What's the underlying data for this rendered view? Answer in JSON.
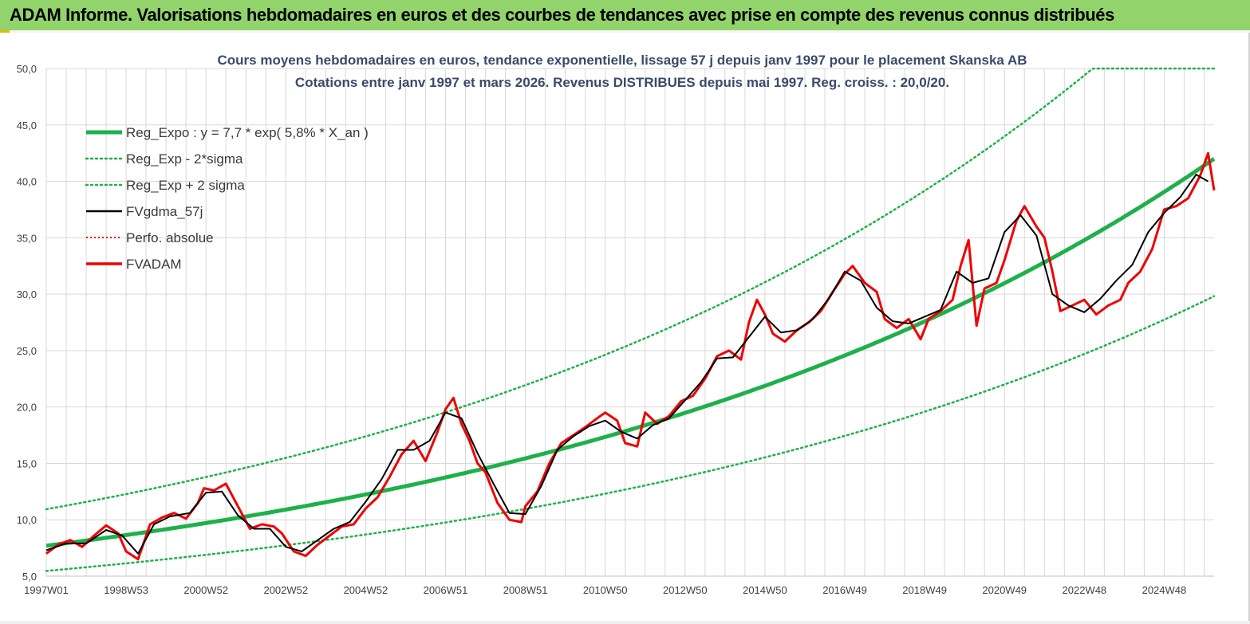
{
  "banner": {
    "title": "ADAM Informe. Valorisations hebdomadaires en euros et des courbes de tendances avec prise en compte des revenus connus distribués"
  },
  "colors": {
    "banner": "#92d36b",
    "regression": "#1fb04b",
    "band": "#1fb04b",
    "smoothed": "#000000",
    "perfo": "#e00000",
    "fvadam": "#ee0000"
  },
  "chart_data": {
    "type": "line",
    "title_line1": "Cours moyens hebdomadaires en euros, tendance exponentielle, lissage 57 j depuis janv 1997 pour le placement Skanska AB",
    "title_line2": "Cotations entre janv 1997 et mars 2026. Revenus DISTRIBUES depuis mai 1997. Reg. croiss. : 20,0/20.",
    "x_range": [
      1997.0,
      2026.25
    ],
    "ylim": [
      5,
      50
    ],
    "y_ticks": [
      "5,0",
      "10,0",
      "15,0",
      "20,0",
      "25,0",
      "30,0",
      "35,0",
      "40,0",
      "45,0",
      "50,0"
    ],
    "x_tick_labels": [
      "1997W01",
      "1998W53",
      "2000W52",
      "2002W52",
      "2004W52",
      "2006W51",
      "2008W51",
      "2010W50",
      "2012W50",
      "2014W50",
      "2016W49",
      "2018W49",
      "2020W49",
      "2022W48",
      "2024W48"
    ],
    "x_tick_years": [
      1997.0,
      1999.0,
      2001.0,
      2003.0,
      2005.0,
      2007.0,
      2009.0,
      2011.0,
      2013.0,
      2015.0,
      2017.0,
      2019.0,
      2021.0,
      2023.0,
      2025.0
    ],
    "grid": true,
    "legend": [
      {
        "label": "Reg_Expo : y = 7,7 * exp( 5,8% *  X_an )",
        "style": "thick-green"
      },
      {
        "label": "Reg_Exp - 2*sigma",
        "style": "dotted-green"
      },
      {
        "label": "Reg_Exp + 2 sigma",
        "style": "dotted-green"
      },
      {
        "label": "FVgdma_57j",
        "style": "black"
      },
      {
        "label": "Perfo. absolue",
        "style": "dotted-red"
      },
      {
        "label": "FVADAM",
        "style": "thick-red"
      }
    ],
    "regression": {
      "a": 7.7,
      "rate": 0.058,
      "lower_factor": 0.71,
      "upper_factor": 1.42
    },
    "series_fvadam": {
      "x": [
        1997.0,
        1997.3,
        1997.6,
        1997.9,
        1998.2,
        1998.5,
        1998.8,
        1999.0,
        1999.3,
        1999.6,
        1999.9,
        2000.2,
        2000.5,
        2000.8,
        2000.95,
        2001.2,
        2001.5,
        2001.8,
        2002.1,
        2002.4,
        2002.7,
        2002.9,
        2003.2,
        2003.5,
        2003.8,
        2004.1,
        2004.4,
        2004.7,
        2005.0,
        2005.3,
        2005.6,
        2005.9,
        2006.2,
        2006.5,
        2006.8,
        2007.0,
        2007.2,
        2007.4,
        2007.6,
        2007.8,
        2008.0,
        2008.3,
        2008.6,
        2008.9,
        2009.0,
        2009.3,
        2009.6,
        2009.9,
        2010.2,
        2010.5,
        2010.8,
        2011.0,
        2011.3,
        2011.5,
        2011.8,
        2012.0,
        2012.3,
        2012.6,
        2012.9,
        2013.2,
        2013.5,
        2013.8,
        2014.1,
        2014.4,
        2014.6,
        2014.8,
        2015.0,
        2015.2,
        2015.5,
        2015.8,
        2016.1,
        2016.4,
        2016.7,
        2017.0,
        2017.2,
        2017.5,
        2017.8,
        2018.0,
        2018.3,
        2018.6,
        2018.9,
        2019.1,
        2019.4,
        2019.7,
        2019.9,
        2020.1,
        2020.3,
        2020.5,
        2020.8,
        2021.0,
        2021.3,
        2021.5,
        2021.8,
        2022.0,
        2022.2,
        2022.4,
        2022.7,
        2023.0,
        2023.3,
        2023.6,
        2023.9,
        2024.1,
        2024.4,
        2024.7,
        2025.0,
        2025.3,
        2025.6,
        2025.9,
        2026.1,
        2026.25
      ],
      "values": [
        7.0,
        7.8,
        8.2,
        7.6,
        8.6,
        9.5,
        8.8,
        7.2,
        6.5,
        9.6,
        10.2,
        10.6,
        10.1,
        11.5,
        12.8,
        12.6,
        13.2,
        11.2,
        9.2,
        9.6,
        9.4,
        8.8,
        7.2,
        6.8,
        7.8,
        8.6,
        9.4,
        9.6,
        11.0,
        12.0,
        13.8,
        15.8,
        17.0,
        15.2,
        17.8,
        19.8,
        20.8,
        18.5,
        17.0,
        15.0,
        14.2,
        11.5,
        10.0,
        9.8,
        11.2,
        12.5,
        15.0,
        16.8,
        17.5,
        18.2,
        19.0,
        19.5,
        18.8,
        16.8,
        16.5,
        19.5,
        18.5,
        19.2,
        20.5,
        21.0,
        22.5,
        24.5,
        25.0,
        24.2,
        27.5,
        29.5,
        28.2,
        26.5,
        25.8,
        26.8,
        27.5,
        28.5,
        30.2,
        31.8,
        32.5,
        31.0,
        30.2,
        27.8,
        27.0,
        27.8,
        26.0,
        27.8,
        28.5,
        29.5,
        32.5,
        34.8,
        27.2,
        30.5,
        31.0,
        33.0,
        36.5,
        37.8,
        36.0,
        35.0,
        32.0,
        28.5,
        29.0,
        29.5,
        28.2,
        29.0,
        29.5,
        31.0,
        32.0,
        34.0,
        37.5,
        37.8,
        38.5,
        40.5,
        42.5,
        39.2
      ]
    },
    "series_fvgdma_57j": {
      "x": [
        1997.0,
        1997.5,
        1998.0,
        1998.5,
        1998.9,
        1999.3,
        1999.7,
        2000.1,
        2000.6,
        2001.0,
        2001.4,
        2001.8,
        2002.2,
        2002.6,
        2003.0,
        2003.4,
        2003.8,
        2004.2,
        2004.6,
        2005.0,
        2005.4,
        2005.8,
        2006.2,
        2006.6,
        2007.0,
        2007.4,
        2007.8,
        2008.2,
        2008.6,
        2009.0,
        2009.4,
        2009.8,
        2010.2,
        2010.6,
        2011.0,
        2011.4,
        2011.8,
        2012.2,
        2012.6,
        2013.0,
        2013.4,
        2013.8,
        2014.2,
        2014.6,
        2015.0,
        2015.4,
        2015.8,
        2016.2,
        2016.6,
        2017.0,
        2017.4,
        2017.8,
        2018.2,
        2018.6,
        2019.0,
        2019.4,
        2019.8,
        2020.2,
        2020.6,
        2021.0,
        2021.4,
        2021.8,
        2022.2,
        2022.6,
        2023.0,
        2023.4,
        2023.8,
        2024.2,
        2024.6,
        2025.0,
        2025.4,
        2025.8,
        2026.1
      ],
      "values": [
        7.3,
        7.9,
        7.9,
        9.1,
        8.6,
        7.0,
        9.6,
        10.3,
        10.6,
        12.4,
        12.5,
        10.4,
        9.2,
        9.2,
        7.6,
        7.2,
        8.2,
        9.2,
        9.8,
        11.6,
        13.6,
        16.2,
        16.2,
        17.0,
        19.5,
        19.0,
        15.9,
        13.2,
        10.6,
        10.5,
        13.0,
        16.2,
        17.4,
        18.3,
        18.8,
        17.8,
        17.2,
        18.4,
        19.0,
        20.6,
        22.2,
        24.3,
        24.4,
        26.2,
        28.0,
        26.6,
        26.8,
        27.8,
        29.6,
        32.0,
        31.2,
        28.8,
        27.6,
        27.4,
        28.0,
        28.6,
        32.0,
        31.0,
        31.4,
        35.5,
        37.0,
        35.2,
        30.0,
        29.0,
        28.4,
        29.6,
        31.2,
        32.6,
        35.5,
        37.2,
        38.6,
        40.6,
        40.0
      ]
    }
  }
}
